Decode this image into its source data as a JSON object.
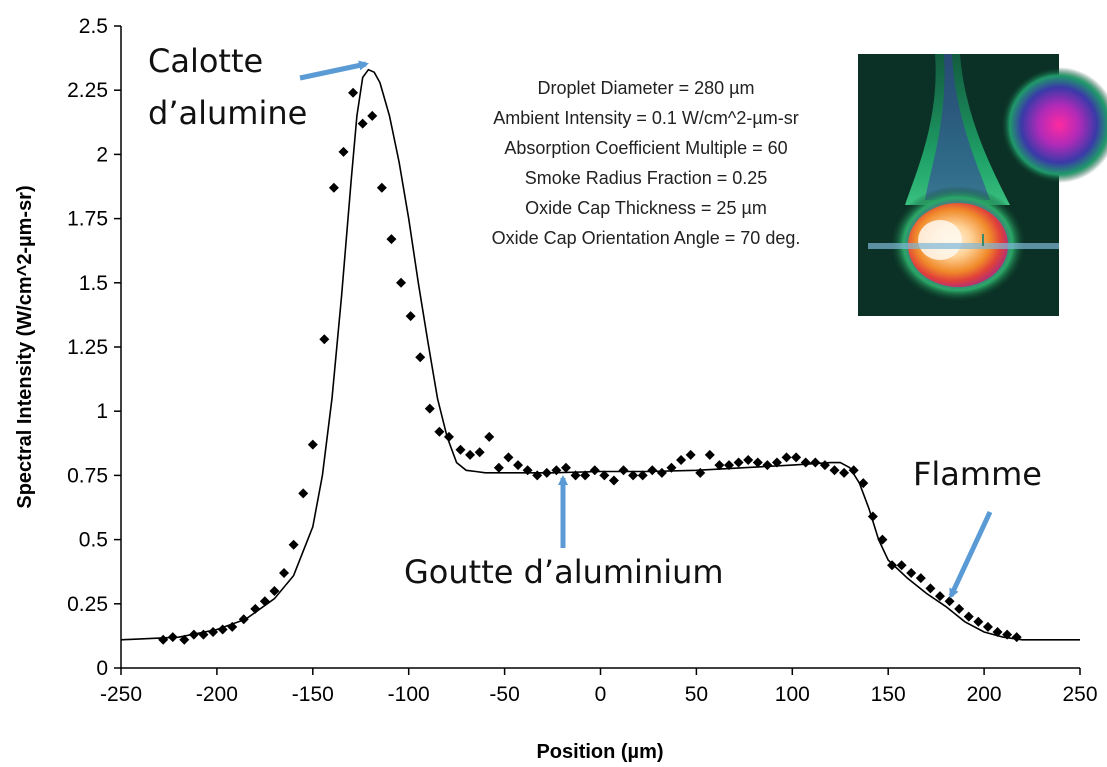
{
  "chart_data": {
    "type": "scatter",
    "xlabel": "Position (µm)",
    "ylabel": "Spectral Intensity (W/cm^2-µm-sr)",
    "xlim": [
      -250,
      250
    ],
    "ylim": [
      0,
      2.5
    ],
    "xticks": [
      "-250",
      "-200",
      "-150",
      "-100",
      "-50",
      "0",
      "50",
      "100",
      "150",
      "200",
      "250"
    ],
    "yticks": [
      "0",
      "0.25",
      "0.5",
      "0.75",
      "1",
      "1.25",
      "1.5",
      "1.75",
      "2",
      "2.25",
      "2.5"
    ],
    "grid": false,
    "series": [
      {
        "kind": "model-line",
        "color": "#000000",
        "x": [
          -250,
          -220,
          -200,
          -185,
          -170,
          -160,
          -150,
          -145,
          -140,
          -135,
          -130,
          -127,
          -124,
          -121,
          -118,
          -115,
          -110,
          -105,
          -100,
          -95,
          -90,
          -85,
          -80,
          -75,
          -70,
          -65,
          -60,
          -50,
          -25,
          0,
          25,
          50,
          75,
          100,
          110,
          120,
          125,
          130,
          135,
          140,
          145,
          150,
          160,
          170,
          180,
          190,
          200,
          210,
          220,
          230,
          250
        ],
        "y": [
          0.11,
          0.12,
          0.15,
          0.19,
          0.27,
          0.36,
          0.55,
          0.75,
          1.05,
          1.45,
          1.9,
          2.15,
          2.3,
          2.33,
          2.32,
          2.28,
          2.15,
          1.97,
          1.75,
          1.5,
          1.27,
          1.05,
          0.9,
          0.8,
          0.77,
          0.765,
          0.76,
          0.76,
          0.76,
          0.765,
          0.765,
          0.77,
          0.78,
          0.79,
          0.795,
          0.8,
          0.8,
          0.78,
          0.72,
          0.62,
          0.5,
          0.42,
          0.35,
          0.29,
          0.24,
          0.18,
          0.14,
          0.12,
          0.11,
          0.11,
          0.11
        ]
      },
      {
        "kind": "measured-points",
        "color": "#000000",
        "x": [
          -228,
          -223,
          -217,
          -212,
          -207,
          -202,
          -197,
          -192,
          -186,
          -180,
          -175,
          -170,
          -165,
          -160,
          -155,
          -150,
          -144,
          -139,
          -134,
          -129,
          -124,
          -119,
          -114,
          -109,
          -104,
          -99,
          -94,
          -89,
          -84,
          -79,
          -73,
          -68,
          -63,
          -58,
          -53,
          -48,
          -43,
          -38,
          -33,
          -28,
          -23,
          -18,
          -13,
          -8,
          -3,
          2,
          7,
          12,
          17,
          22,
          27,
          32,
          37,
          42,
          47,
          52,
          57,
          62,
          67,
          72,
          77,
          82,
          87,
          92,
          97,
          102,
          107,
          112,
          117,
          122,
          127,
          132,
          137,
          142,
          147,
          152,
          157,
          162,
          167,
          172,
          177,
          182,
          187,
          192,
          197,
          202,
          207,
          212,
          217
        ],
        "y": [
          0.11,
          0.12,
          0.11,
          0.13,
          0.13,
          0.14,
          0.15,
          0.16,
          0.19,
          0.23,
          0.26,
          0.3,
          0.37,
          0.48,
          0.68,
          0.87,
          1.28,
          1.87,
          2.01,
          2.24,
          2.12,
          2.15,
          1.87,
          1.67,
          1.5,
          1.37,
          1.21,
          1.01,
          0.92,
          0.9,
          0.85,
          0.83,
          0.84,
          0.9,
          0.78,
          0.82,
          0.79,
          0.77,
          0.75,
          0.76,
          0.77,
          0.78,
          0.75,
          0.75,
          0.77,
          0.75,
          0.73,
          0.77,
          0.75,
          0.75,
          0.77,
          0.76,
          0.78,
          0.81,
          0.83,
          0.76,
          0.83,
          0.79,
          0.79,
          0.8,
          0.81,
          0.8,
          0.79,
          0.8,
          0.82,
          0.82,
          0.8,
          0.8,
          0.79,
          0.77,
          0.76,
          0.77,
          0.72,
          0.59,
          0.5,
          0.4,
          0.4,
          0.37,
          0.35,
          0.31,
          0.28,
          0.26,
          0.23,
          0.2,
          0.18,
          0.16,
          0.14,
          0.13,
          0.12
        ]
      }
    ]
  },
  "parameters": [
    "Droplet Diameter = 280 µm",
    "Ambient Intensity = 0.1 W/cm^2-µm-sr",
    "Absorption Coefficient Multiple = 60",
    "Smoke Radius Fraction = 0.25",
    "Oxide Cap Thickness = 25 µm",
    "Oxide Cap Orientation Angle = 70 deg."
  ],
  "annotations": {
    "cap_line1": "Calotte",
    "cap_line2": "d’alumine",
    "droplet": "Goutte d’aluminium",
    "flame": "Flamme",
    "arrow_color": "#5b9bd5"
  },
  "inset_image": {
    "description_icon": "droplet-emission-image"
  }
}
